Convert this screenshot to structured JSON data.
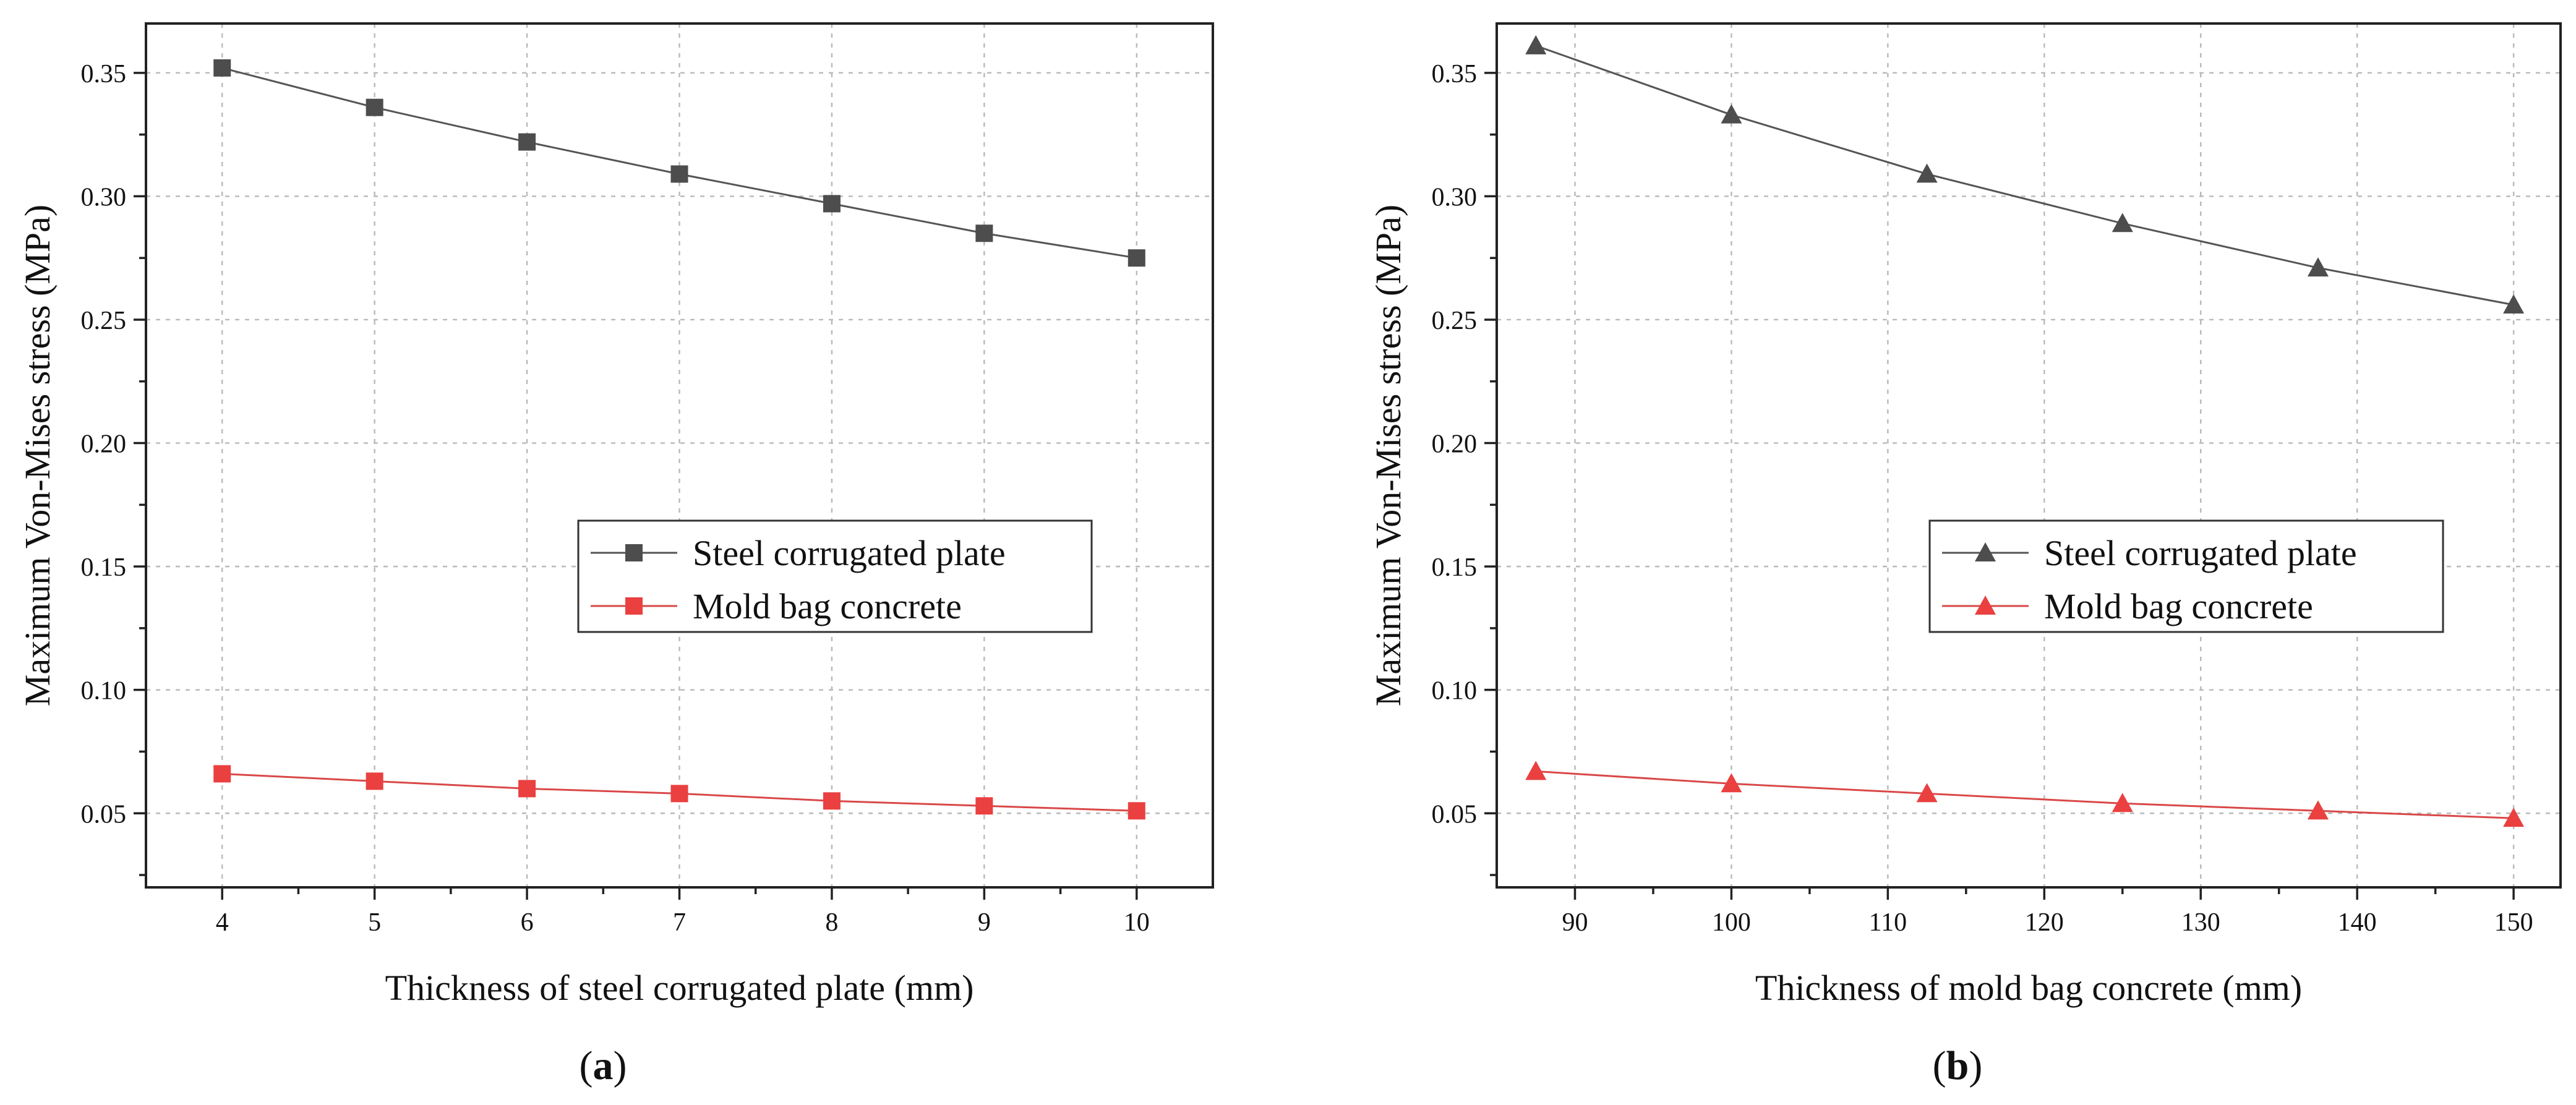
{
  "chart_data": [
    {
      "id": "a",
      "type": "line",
      "panel_label": "(a)",
      "panel_letter": "a",
      "xlabel": "Thickness of steel corrugated plate (mm)",
      "ylabel": "Maximum Von-Mises stress (MPa)",
      "xlim": [
        3.5,
        10.5
      ],
      "ylim": [
        0.02,
        0.37
      ],
      "xticks": [
        4,
        5,
        6,
        7,
        8,
        9,
        10
      ],
      "xtick_labels": [
        "4",
        "5",
        "6",
        "7",
        "8",
        "9",
        "10"
      ],
      "yticks": [
        0.05,
        0.1,
        0.15,
        0.2,
        0.25,
        0.3,
        0.35
      ],
      "ytick_labels": [
        "0.05",
        "0.10",
        "0.15",
        "0.20",
        "0.25",
        "0.30",
        "0.35"
      ],
      "grid": true,
      "legend_position": "center-right",
      "x": [
        4,
        5,
        6,
        7,
        8,
        9,
        10
      ],
      "series": [
        {
          "name": "Steel corrugated plate",
          "marker": "square",
          "color": "#4d4d4d",
          "line_color": "#555555",
          "values": [
            0.352,
            0.336,
            0.322,
            0.309,
            0.297,
            0.285,
            0.275
          ]
        },
        {
          "name": "Mold bag concrete",
          "marker": "square",
          "color": "#ea4040",
          "line_color": "#d94848",
          "values": [
            0.066,
            0.063,
            0.06,
            0.058,
            0.055,
            0.053,
            0.051
          ]
        }
      ]
    },
    {
      "id": "b",
      "type": "line",
      "panel_label": "(b)",
      "panel_letter": "b",
      "xlabel": "Thickness of mold bag concrete (mm)",
      "ylabel": "Maximum Von-Mises stress (MPa)",
      "xlim": [
        85,
        153
      ],
      "ylim": [
        0.02,
        0.37
      ],
      "xticks": [
        90,
        100,
        110,
        120,
        130,
        140,
        150
      ],
      "xtick_labels": [
        "90",
        "100",
        "110",
        "120",
        "130",
        "140",
        "150"
      ],
      "yticks": [
        0.05,
        0.1,
        0.15,
        0.2,
        0.25,
        0.3,
        0.35
      ],
      "ytick_labels": [
        "0.05",
        "0.10",
        "0.15",
        "0.20",
        "0.25",
        "0.30",
        "0.35"
      ],
      "grid": true,
      "legend_position": "center-right",
      "x": [
        87.5,
        100,
        112.5,
        125,
        137.5,
        150
      ],
      "series": [
        {
          "name": "Steel corrugated plate",
          "marker": "triangle",
          "color": "#4d4d4d",
          "line_color": "#555555",
          "values": [
            0.361,
            0.333,
            0.309,
            0.289,
            0.271,
            0.256
          ]
        },
        {
          "name": "Mold bag concrete",
          "marker": "triangle",
          "color": "#ea4040",
          "line_color": "#d94848",
          "values": [
            0.067,
            0.062,
            0.058,
            0.054,
            0.051,
            0.048
          ]
        }
      ]
    }
  ]
}
